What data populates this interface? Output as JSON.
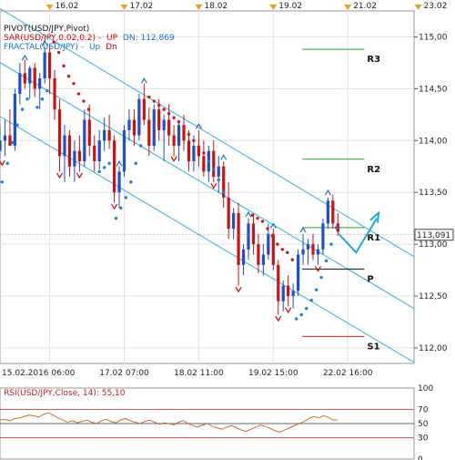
{
  "chart_data": [
    {
      "type": "candlestick",
      "title": "PIVOT(USD/JPY,Pivot)",
      "indicators": {
        "sar_label": "SAR(USD/JPY,0.02,0.2) -",
        "sar_up": "UP",
        "sar_dn": "DN: 112,869",
        "fractal_label": "FRACTAL(USD/JPY) -",
        "fractal_up": "Up",
        "fractal_dn": "Dn"
      },
      "ylim": [
        111.85,
        115.25
      ],
      "yticks": [
        "115,00",
        "114,50",
        "114,00",
        "113,50",
        "113,00",
        "112,50",
        "112,00"
      ],
      "ytick_values": [
        115.0,
        114.5,
        114.0,
        113.5,
        113.0,
        112.5,
        112.0
      ],
      "xlim": [
        0,
        100
      ],
      "top_dates": [
        {
          "label": "16.02",
          "x": 12
        },
        {
          "label": "17.02",
          "x": 30
        },
        {
          "label": "18.02",
          "x": 48
        },
        {
          "label": "19.02",
          "x": 66
        },
        {
          "label": "21.02",
          "x": 84
        },
        {
          "label": "23.02",
          "x": 101
        }
      ],
      "bottom_dates": [
        {
          "label": "15.02.2016 06:00",
          "x": 0
        },
        {
          "label": "17.02 07:00",
          "x": 30
        },
        {
          "label": "18.02 11:00",
          "x": 48
        },
        {
          "label": "19.02 15:00",
          "x": 66
        },
        {
          "label": "22.02 16:00",
          "x": 84
        }
      ],
      "current_price": {
        "label": "113,091",
        "value": 113.091
      },
      "pivots": [
        {
          "name": "R3",
          "value": 114.88
        },
        {
          "name": "R2",
          "value": 113.82
        },
        {
          "name": "R1",
          "value": 113.16
        },
        {
          "name": "P",
          "value": 112.76
        },
        {
          "name": "S1",
          "value": 112.11
        }
      ],
      "pivot_span": [
        73,
        88
      ],
      "channel": [
        {
          "x0": -2,
          "y0": 115.32,
          "x1": 100,
          "y1": 112.88
        },
        {
          "x0": -2,
          "y0": 114.8,
          "x1": 100,
          "y1": 112.38
        },
        {
          "x0": -2,
          "y0": 114.28,
          "x1": 100,
          "y1": 111.86
        }
      ],
      "candles": [
        {
          "x": 0,
          "o": 113.9,
          "h": 114.15,
          "l": 113.82,
          "c": 114.0
        },
        {
          "x": 1.2,
          "o": 114.0,
          "h": 114.2,
          "l": 113.85,
          "c": 114.05
        },
        {
          "x": 2.4,
          "o": 114.05,
          "h": 114.3,
          "l": 113.95,
          "c": 113.95
        },
        {
          "x": 3.6,
          "o": 113.95,
          "h": 114.5,
          "l": 113.9,
          "c": 114.45
        },
        {
          "x": 4.8,
          "o": 114.45,
          "h": 114.75,
          "l": 114.35,
          "c": 114.65
        },
        {
          "x": 6.0,
          "o": 114.65,
          "h": 114.78,
          "l": 114.5,
          "c": 114.55
        },
        {
          "x": 7.2,
          "o": 114.55,
          "h": 114.72,
          "l": 114.4,
          "c": 114.7
        },
        {
          "x": 8.4,
          "o": 114.7,
          "h": 114.75,
          "l": 114.42,
          "c": 114.5
        },
        {
          "x": 9.6,
          "o": 114.5,
          "h": 114.65,
          "l": 114.3,
          "c": 114.6
        },
        {
          "x": 10.8,
          "o": 114.6,
          "h": 114.9,
          "l": 114.55,
          "c": 114.85
        },
        {
          "x": 12.0,
          "o": 114.85,
          "h": 114.92,
          "l": 114.45,
          "c": 114.6
        },
        {
          "x": 13.2,
          "o": 114.6,
          "h": 114.68,
          "l": 114.2,
          "c": 114.3
        },
        {
          "x": 14.4,
          "o": 114.3,
          "h": 114.4,
          "l": 113.7,
          "c": 113.85
        },
        {
          "x": 15.6,
          "o": 113.85,
          "h": 114.15,
          "l": 113.6,
          "c": 114.05
        },
        {
          "x": 16.8,
          "o": 114.05,
          "h": 114.1,
          "l": 113.65,
          "c": 113.75
        },
        {
          "x": 18.0,
          "o": 113.75,
          "h": 114.0,
          "l": 113.6,
          "c": 113.9
        },
        {
          "x": 19.2,
          "o": 113.9,
          "h": 114.05,
          "l": 113.7,
          "c": 113.8
        },
        {
          "x": 20.4,
          "o": 113.8,
          "h": 114.3,
          "l": 113.75,
          "c": 114.2
        },
        {
          "x": 21.6,
          "o": 114.2,
          "h": 114.35,
          "l": 113.85,
          "c": 113.95
        },
        {
          "x": 22.8,
          "o": 113.95,
          "h": 114.05,
          "l": 113.7,
          "c": 113.8
        },
        {
          "x": 24.0,
          "o": 113.8,
          "h": 114.1,
          "l": 113.72,
          "c": 114.0
        },
        {
          "x": 25.2,
          "o": 114.0,
          "h": 114.22,
          "l": 113.9,
          "c": 114.1
        },
        {
          "x": 26.4,
          "o": 114.1,
          "h": 114.25,
          "l": 113.92,
          "c": 114.0
        },
        {
          "x": 27.6,
          "o": 114.0,
          "h": 114.05,
          "l": 113.4,
          "c": 113.5
        },
        {
          "x": 28.8,
          "o": 113.5,
          "h": 113.75,
          "l": 113.35,
          "c": 113.7
        },
        {
          "x": 30.0,
          "o": 113.7,
          "h": 114.15,
          "l": 113.65,
          "c": 114.1
        },
        {
          "x": 31.2,
          "o": 114.1,
          "h": 114.3,
          "l": 114.0,
          "c": 114.2
        },
        {
          "x": 32.4,
          "o": 114.2,
          "h": 114.3,
          "l": 113.95,
          "c": 114.05
        },
        {
          "x": 33.6,
          "o": 114.05,
          "h": 114.45,
          "l": 114.0,
          "c": 114.4
        },
        {
          "x": 34.8,
          "o": 114.4,
          "h": 114.55,
          "l": 114.15,
          "c": 114.2
        },
        {
          "x": 36.0,
          "o": 114.2,
          "h": 114.32,
          "l": 113.85,
          "c": 113.95
        },
        {
          "x": 37.2,
          "o": 113.95,
          "h": 114.35,
          "l": 113.9,
          "c": 114.3
        },
        {
          "x": 38.4,
          "o": 114.3,
          "h": 114.4,
          "l": 114.0,
          "c": 114.1
        },
        {
          "x": 39.6,
          "o": 114.1,
          "h": 114.25,
          "l": 113.8,
          "c": 114.2
        },
        {
          "x": 40.8,
          "o": 114.2,
          "h": 114.35,
          "l": 113.95,
          "c": 114.05
        },
        {
          "x": 42.0,
          "o": 114.05,
          "h": 114.15,
          "l": 113.85,
          "c": 113.95
        },
        {
          "x": 43.2,
          "o": 113.95,
          "h": 114.2,
          "l": 113.8,
          "c": 114.15
        },
        {
          "x": 44.4,
          "o": 114.15,
          "h": 114.25,
          "l": 113.9,
          "c": 114.0
        },
        {
          "x": 45.6,
          "o": 114.0,
          "h": 114.1,
          "l": 113.7,
          "c": 113.8
        },
        {
          "x": 46.8,
          "o": 113.8,
          "h": 114.05,
          "l": 113.7,
          "c": 113.95
        },
        {
          "x": 48.0,
          "o": 113.95,
          "h": 114.1,
          "l": 113.75,
          "c": 113.85
        },
        {
          "x": 49.2,
          "o": 113.85,
          "h": 114.0,
          "l": 113.65,
          "c": 113.7
        },
        {
          "x": 50.4,
          "o": 113.7,
          "h": 113.95,
          "l": 113.6,
          "c": 113.9
        },
        {
          "x": 51.6,
          "o": 113.9,
          "h": 114.0,
          "l": 113.6,
          "c": 113.65
        },
        {
          "x": 52.8,
          "o": 113.65,
          "h": 113.85,
          "l": 113.5,
          "c": 113.75
        },
        {
          "x": 54.0,
          "o": 113.75,
          "h": 113.8,
          "l": 113.35,
          "c": 113.45
        },
        {
          "x": 55.2,
          "o": 113.45,
          "h": 113.6,
          "l": 113.05,
          "c": 113.15
        },
        {
          "x": 56.4,
          "o": 113.15,
          "h": 113.35,
          "l": 113.05,
          "c": 113.3
        },
        {
          "x": 57.6,
          "o": 113.3,
          "h": 113.4,
          "l": 112.6,
          "c": 112.8
        },
        {
          "x": 58.8,
          "o": 112.8,
          "h": 113.0,
          "l": 112.7,
          "c": 112.95
        },
        {
          "x": 60.0,
          "o": 112.95,
          "h": 113.25,
          "l": 112.85,
          "c": 113.2
        },
        {
          "x": 61.2,
          "o": 113.2,
          "h": 113.3,
          "l": 112.9,
          "c": 113.0
        },
        {
          "x": 62.4,
          "o": 113.0,
          "h": 113.1,
          "l": 112.72,
          "c": 112.8
        },
        {
          "x": 63.6,
          "o": 112.8,
          "h": 113.0,
          "l": 112.7,
          "c": 112.9
        },
        {
          "x": 64.8,
          "o": 112.9,
          "h": 113.2,
          "l": 112.85,
          "c": 113.1
        },
        {
          "x": 66.0,
          "o": 113.1,
          "h": 113.15,
          "l": 112.75,
          "c": 112.8
        },
        {
          "x": 67.2,
          "o": 112.8,
          "h": 112.85,
          "l": 112.32,
          "c": 112.45
        },
        {
          "x": 68.4,
          "o": 112.45,
          "h": 112.65,
          "l": 112.35,
          "c": 112.6
        },
        {
          "x": 69.6,
          "o": 112.6,
          "h": 112.7,
          "l": 112.4,
          "c": 112.5
        },
        {
          "x": 70.8,
          "o": 112.5,
          "h": 112.62,
          "l": 112.38,
          "c": 112.55
        },
        {
          "x": 72.0,
          "o": 112.55,
          "h": 112.95,
          "l": 112.5,
          "c": 112.9
        },
        {
          "x": 73.2,
          "o": 112.9,
          "h": 113.1,
          "l": 112.8,
          "c": 112.95
        },
        {
          "x": 74.4,
          "o": 112.95,
          "h": 113.05,
          "l": 112.8,
          "c": 113.0
        },
        {
          "x": 75.6,
          "o": 113.0,
          "h": 113.1,
          "l": 112.85,
          "c": 112.9
        },
        {
          "x": 76.8,
          "o": 112.9,
          "h": 113.0,
          "l": 112.8,
          "c": 112.95
        },
        {
          "x": 78.0,
          "o": 112.95,
          "h": 113.25,
          "l": 112.9,
          "c": 113.2
        },
        {
          "x": 79.2,
          "o": 113.2,
          "h": 113.45,
          "l": 113.15,
          "c": 113.42
        },
        {
          "x": 80.4,
          "o": 113.42,
          "h": 113.48,
          "l": 113.15,
          "c": 113.2
        },
        {
          "x": 81.6,
          "o": 113.2,
          "h": 113.3,
          "l": 113.08,
          "c": 113.12
        }
      ],
      "sar": [
        {
          "x": 0.5,
          "y": 113.6
        },
        {
          "x": 1.8,
          "y": 113.78
        },
        {
          "x": 3.0,
          "y": 113.98
        },
        {
          "x": 4.2,
          "y": 114.15
        },
        {
          "x": 5.4,
          "y": 114.3
        },
        {
          "x": 6.6,
          "y": 114.4
        },
        {
          "x": 9.0,
          "y": 114.32
        },
        {
          "x": 10.2,
          "y": 114.4
        },
        {
          "x": 11.4,
          "y": 114.48
        },
        {
          "x": 13.0,
          "y": 114.95
        },
        {
          "x": 14.2,
          "y": 114.85
        },
        {
          "x": 15.4,
          "y": 114.72
        },
        {
          "x": 16.6,
          "y": 114.62
        },
        {
          "x": 17.8,
          "y": 114.55
        },
        {
          "x": 19.0,
          "y": 114.45
        },
        {
          "x": 20.2,
          "y": 114.38
        },
        {
          "x": 21.4,
          "y": 114.3
        },
        {
          "x": 24.0,
          "y": 113.7
        },
        {
          "x": 25.2,
          "y": 113.74
        },
        {
          "x": 26.4,
          "y": 113.78
        },
        {
          "x": 28.0,
          "y": 113.25
        },
        {
          "x": 29.2,
          "y": 113.35
        },
        {
          "x": 30.4,
          "y": 113.45
        },
        {
          "x": 31.6,
          "y": 113.6
        },
        {
          "x": 32.8,
          "y": 113.78
        },
        {
          "x": 34.0,
          "y": 113.95
        },
        {
          "x": 36.0,
          "y": 114.42
        },
        {
          "x": 37.2,
          "y": 114.38
        },
        {
          "x": 38.4,
          "y": 114.34
        },
        {
          "x": 39.6,
          "y": 114.3
        },
        {
          "x": 40.8,
          "y": 114.26
        },
        {
          "x": 42.0,
          "y": 114.22
        },
        {
          "x": 43.2,
          "y": 114.18
        },
        {
          "x": 44.4,
          "y": 114.12
        },
        {
          "x": 45.6,
          "y": 114.06
        },
        {
          "x": 46.8,
          "y": 114.0
        },
        {
          "x": 48.0,
          "y": 113.94
        },
        {
          "x": 49.2,
          "y": 113.88
        },
        {
          "x": 50.4,
          "y": 113.8
        },
        {
          "x": 51.6,
          "y": 113.72
        },
        {
          "x": 52.8,
          "y": 113.62
        },
        {
          "x": 54.0,
          "y": 113.5
        },
        {
          "x": 55.2,
          "y": 113.4
        },
        {
          "x": 61.0,
          "y": 113.28
        },
        {
          "x": 62.2,
          "y": 113.25
        },
        {
          "x": 63.4,
          "y": 113.22
        },
        {
          "x": 64.6,
          "y": 113.15
        },
        {
          "x": 65.8,
          "y": 113.08
        },
        {
          "x": 67.0,
          "y": 113.0
        },
        {
          "x": 68.2,
          "y": 112.95
        },
        {
          "x": 69.4,
          "y": 112.92
        },
        {
          "x": 70.6,
          "y": 112.85
        },
        {
          "x": 71.6,
          "y": 112.28
        },
        {
          "x": 72.8,
          "y": 112.32
        },
        {
          "x": 74.0,
          "y": 112.38
        },
        {
          "x": 75.2,
          "y": 112.46
        },
        {
          "x": 76.4,
          "y": 112.56
        },
        {
          "x": 77.6,
          "y": 112.68
        },
        {
          "x": 78.8,
          "y": 112.84
        },
        {
          "x": 80.0,
          "y": 113.0
        },
        {
          "x": 81.2,
          "y": 113.16
        }
      ],
      "fractals_up": [
        {
          "x": 6.0,
          "y": 114.8
        },
        {
          "x": 10.8,
          "y": 114.94
        },
        {
          "x": 28.8,
          "y": 113.78
        },
        {
          "x": 34.8,
          "y": 114.58
        },
        {
          "x": 48.0,
          "y": 114.14
        },
        {
          "x": 54.0,
          "y": 113.84
        },
        {
          "x": 60.0,
          "y": 113.29
        },
        {
          "x": 66.0,
          "y": 113.18
        },
        {
          "x": 73.2,
          "y": 113.14
        },
        {
          "x": 79.2,
          "y": 113.5
        }
      ],
      "fractals_dn": [
        {
          "x": 0.5,
          "y": 113.78
        },
        {
          "x": 14.4,
          "y": 113.66
        },
        {
          "x": 19.2,
          "y": 113.66
        },
        {
          "x": 27.6,
          "y": 113.36
        },
        {
          "x": 42.0,
          "y": 113.82
        },
        {
          "x": 51.6,
          "y": 113.56
        },
        {
          "x": 57.6,
          "y": 112.56
        },
        {
          "x": 67.2,
          "y": 112.28
        },
        {
          "x": 69.6,
          "y": 112.36
        },
        {
          "x": 76.8,
          "y": 112.76
        }
      ],
      "arrow": [
        {
          "x": 81.8,
          "y": 113.1
        },
        {
          "x": 86.0,
          "y": 112.92
        },
        {
          "x": 91.0,
          "y": 113.25
        }
      ]
    },
    {
      "type": "line",
      "title": "RSI(USD/JPY,Close, 14): 55,10",
      "ylim": [
        0,
        100
      ],
      "yticks": [
        "100",
        "70",
        "50",
        "30",
        "0"
      ],
      "ytick_values": [
        100,
        70,
        50,
        30,
        0
      ],
      "levels": [
        70,
        50,
        30
      ],
      "series": [
        {
          "values": [
            55,
            56,
            54,
            57,
            58,
            60,
            62,
            61,
            59,
            63,
            65,
            62,
            58,
            55,
            52,
            54,
            51,
            53,
            55,
            52,
            50,
            54,
            56,
            53,
            51,
            55,
            57,
            54,
            52,
            50,
            53,
            55,
            52,
            49,
            51,
            50,
            48,
            52,
            54,
            50,
            47,
            45,
            48,
            50,
            46,
            44,
            42,
            45,
            47,
            44,
            41,
            39,
            42,
            45,
            48,
            46,
            43,
            40,
            38,
            41,
            44,
            47,
            50,
            53,
            57,
            60,
            58,
            61,
            59,
            55,
            55
          ]
        }
      ]
    }
  ]
}
